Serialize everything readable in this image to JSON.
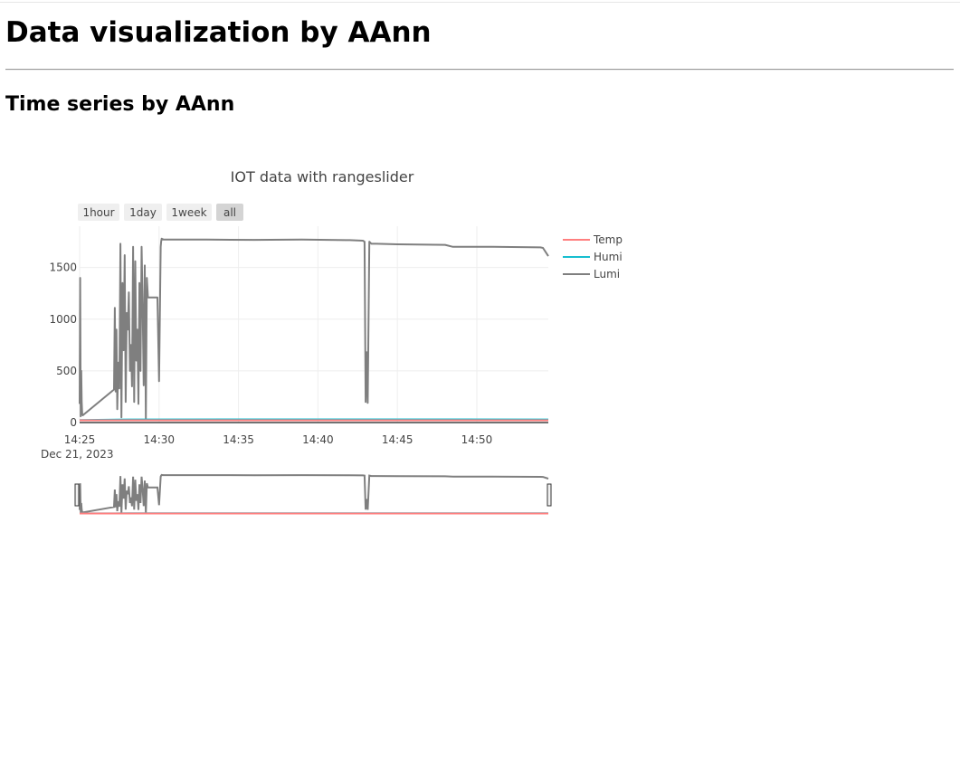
{
  "page": {
    "title": "Data visualization by AAnn",
    "section_title": "Time series by AAnn"
  },
  "chart_data": {
    "type": "line",
    "title": "IOT data with rangeslider",
    "range_selector": {
      "buttons": [
        "1hour",
        "1day",
        "1week",
        "all"
      ],
      "active": "all"
    },
    "x_axis": {
      "type": "date",
      "range": [
        "2023-12-21 14:25:00",
        "2023-12-21 14:54:30"
      ],
      "tick_labels": [
        "14:25",
        "14:30",
        "14:35",
        "14:40",
        "14:45",
        "14:50"
      ],
      "date_label": "Dec 21, 2023"
    },
    "y_axis": {
      "range": [
        0,
        1900
      ],
      "tick_values": [
        0,
        500,
        1000,
        1500
      ],
      "tick_labels": [
        "0",
        "500",
        "1000",
        "1500"
      ]
    },
    "grid": true,
    "legend": {
      "position": "right",
      "entries": [
        "Temp",
        "Humi",
        "Lumi"
      ]
    },
    "rangeslider": true,
    "series": [
      {
        "name": "Temp",
        "color": "#ff7f7f",
        "x": [
          "2023-12-21 14:25:00",
          "2023-12-21 14:54:30"
        ],
        "y": [
          22,
          22
        ]
      },
      {
        "name": "Humi",
        "color": "#17becf",
        "x": [
          "2023-12-21 14:25:00",
          "2023-12-21 14:28:00",
          "2023-12-21 14:35:00",
          "2023-12-21 14:45:00",
          "2023-12-21 14:54:30"
        ],
        "y": [
          24,
          30,
          31,
          31,
          30
        ]
      },
      {
        "name": "Lumi",
        "color": "#7f7f7f",
        "x": [
          "2023-12-21 14:25:00",
          "2023-12-21 14:25:02",
          "2023-12-21 14:25:04",
          "2023-12-21 14:25:06",
          "2023-12-21 14:25:08",
          "2023-12-21 14:25:10",
          "2023-12-21 14:25:12",
          "2023-12-21 14:27:10",
          "2023-12-21 14:27:13",
          "2023-12-21 14:27:16",
          "2023-12-21 14:27:19",
          "2023-12-21 14:27:22",
          "2023-12-21 14:27:26",
          "2023-12-21 14:27:30",
          "2023-12-21 14:27:34",
          "2023-12-21 14:27:38",
          "2023-12-21 14:27:42",
          "2023-12-21 14:27:46",
          "2023-12-21 14:27:50",
          "2023-12-21 14:27:54",
          "2023-12-21 14:27:58",
          "2023-12-21 14:28:02",
          "2023-12-21 14:28:06",
          "2023-12-21 14:28:10",
          "2023-12-21 14:28:14",
          "2023-12-21 14:28:18",
          "2023-12-21 14:28:22",
          "2023-12-21 14:28:26",
          "2023-12-21 14:28:30",
          "2023-12-21 14:28:34",
          "2023-12-21 14:28:38",
          "2023-12-21 14:28:42",
          "2023-12-21 14:28:46",
          "2023-12-21 14:28:50",
          "2023-12-21 14:28:54",
          "2023-12-21 14:28:58",
          "2023-12-21 14:29:02",
          "2023-12-21 14:29:06",
          "2023-12-21 14:29:10",
          "2023-12-21 14:29:14",
          "2023-12-21 14:29:18",
          "2023-12-21 14:29:22",
          "2023-12-21 14:29:26",
          "2023-12-21 14:29:30",
          "2023-12-21 14:29:36",
          "2023-12-21 14:29:42",
          "2023-12-21 14:29:48",
          "2023-12-21 14:29:54",
          "2023-12-21 14:30:00",
          "2023-12-21 14:30:06",
          "2023-12-21 14:30:08",
          "2023-12-21 14:30:10",
          "2023-12-21 14:30:12",
          "2023-12-21 14:30:14",
          "2023-12-21 14:30:16",
          "2023-12-21 14:30:20",
          "2023-12-21 14:33:00",
          "2023-12-21 14:36:00",
          "2023-12-21 14:39:00",
          "2023-12-21 14:42:00",
          "2023-12-21 14:42:50",
          "2023-12-21 14:42:56",
          "2023-12-21 14:43:00",
          "2023-12-21 14:43:04",
          "2023-12-21 14:43:08",
          "2023-12-21 14:43:14",
          "2023-12-21 14:43:22",
          "2023-12-21 14:43:40",
          "2023-12-21 14:45:00",
          "2023-12-21 14:48:00",
          "2023-12-21 14:48:30",
          "2023-12-21 14:51:00",
          "2023-12-21 14:54:00",
          "2023-12-21 14:54:10",
          "2023-12-21 14:54:30"
        ],
        "y": [
          180,
          1400,
          60,
          500,
          200,
          75,
          70,
          320,
          1110,
          300,
          900,
          130,
          580,
          330,
          1730,
          50,
          1350,
          700,
          1620,
          200,
          1060,
          900,
          1260,
          500,
          750,
          350,
          1700,
          200,
          1560,
          600,
          900,
          180,
          1350,
          500,
          1700,
          1100,
          360,
          1520,
          30,
          1400,
          1210,
          1210,
          1210,
          1210,
          1210,
          1210,
          1210,
          1210,
          400,
          1700,
          1750,
          1780,
          1770,
          1775,
          1770,
          1770,
          1770,
          1768,
          1770,
          1765,
          1760,
          1750,
          200,
          680,
          190,
          1750,
          1730,
          1730,
          1725,
          1720,
          1700,
          1700,
          1695,
          1690,
          1610
        ]
      }
    ]
  }
}
